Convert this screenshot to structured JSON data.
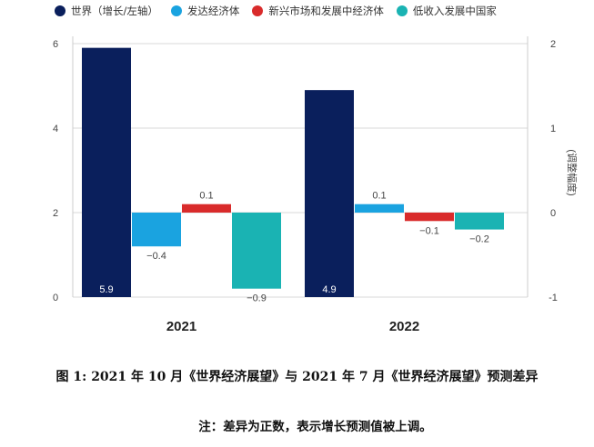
{
  "legend": [
    {
      "label": "世界（增长/左轴）",
      "color": "#0a1f5c"
    },
    {
      "label": "发达经济体",
      "color": "#1aa3e0"
    },
    {
      "label": "新兴市场和发展中经济体",
      "color": "#d92b2b"
    },
    {
      "label": "低收入发展中国家",
      "color": "#1ab3b3"
    }
  ],
  "chart_data": {
    "type": "bar",
    "categories": [
      "2021",
      "2022"
    ],
    "left_axis": {
      "ylim": [
        0,
        6
      ],
      "ticks": [
        "0",
        "2",
        "4",
        "6"
      ]
    },
    "right_axis": {
      "ylim": [
        -1,
        2
      ],
      "ticks": [
        "-1",
        "0",
        "1",
        "2"
      ],
      "label": "(调整幅度)"
    },
    "series": [
      {
        "name": "世界（增长/左轴）",
        "axis": "left",
        "color": "#0a1f5c",
        "values": [
          5.9,
          4.9
        ],
        "labels": [
          "5.9",
          "4.9"
        ]
      },
      {
        "name": "发达经济体",
        "axis": "right",
        "color": "#1aa3e0",
        "values": [
          -0.4,
          0.1
        ],
        "labels": [
          "−0.4",
          "0.1"
        ]
      },
      {
        "name": "新兴市场和发展中经济体",
        "axis": "right",
        "color": "#d92b2b",
        "values": [
          0.1,
          -0.1
        ],
        "labels": [
          "0.1",
          "−0.1"
        ]
      },
      {
        "name": "低收入发展中国家",
        "axis": "right",
        "color": "#1ab3b3",
        "values": [
          -0.9,
          -0.2
        ],
        "labels": [
          "−0.9",
          "−0.2"
        ]
      }
    ]
  },
  "caption": {
    "title": "图 1: 2021 年 10 月《世界经济展望》与 2021 年 7 月《世界经济展望》预测差异",
    "note": "注：差异为正数，表示增长预测值被上调。"
  }
}
